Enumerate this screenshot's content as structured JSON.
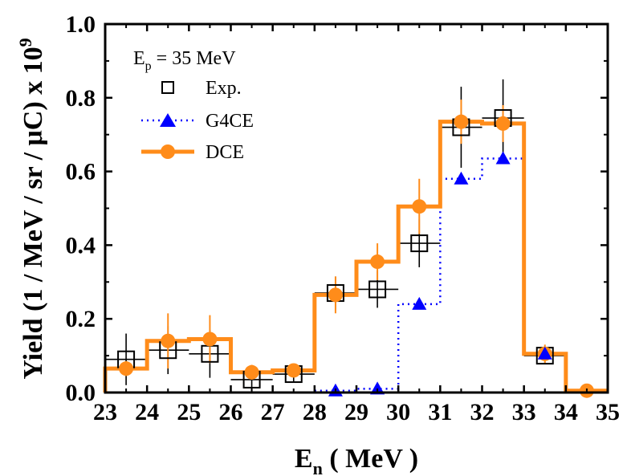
{
  "chart_data": {
    "type": "line",
    "xlabel_main": "E",
    "xlabel_sub": "n",
    "xlabel_rest": " ( MeV )",
    "ylabel_main": "Yield (1 / MeV / sr / μC) x 10",
    "ylabel_sup": "9",
    "xlim": [
      23,
      35
    ],
    "ylim": [
      0,
      1.0
    ],
    "xticks": [
      "23",
      "24",
      "25",
      "26",
      "27",
      "28",
      "29",
      "30",
      "31",
      "32",
      "33",
      "34",
      "35"
    ],
    "yticks": [
      "0.0",
      "0.2",
      "0.4",
      "0.6",
      "0.8",
      "1.0"
    ],
    "annotation_main": "E",
    "annotation_sub": "p",
    "annotation_rest": " = 35 MeV",
    "series": [
      {
        "name": "Exp.",
        "style": "open-square-markers-with-errorbars",
        "color": "#000000",
        "x": [
          23.5,
          24.5,
          25.5,
          26.5,
          27.5,
          28.5,
          29.5,
          30.5,
          31.5,
          32.5,
          33.5
        ],
        "y": [
          0.09,
          0.115,
          0.105,
          0.035,
          0.05,
          0.27,
          0.28,
          0.405,
          0.72,
          0.745,
          0.1
        ],
        "yerr": [
          0.07,
          0.065,
          0.065,
          0.03,
          0.02,
          0.045,
          0.05,
          0.065,
          0.11,
          0.105,
          0.02
        ],
        "xerr": [
          0.5,
          0.5,
          0.5,
          0.5,
          0.5,
          0.5,
          0.5,
          0.5,
          0.5,
          0.5,
          0.5
        ]
      },
      {
        "name": "G4CE",
        "style": "dotted-step-with-triangles",
        "color": "#0000ff",
        "x": [
          28.5,
          29.5,
          30.5,
          31.5,
          32.5,
          33.5
        ],
        "y": [
          0.005,
          0.01,
          0.24,
          0.58,
          0.635,
          0.105
        ]
      },
      {
        "name": "DCE",
        "style": "thick-step-with-circles",
        "color": "#ff8c1a",
        "x": [
          23.5,
          24.5,
          25.5,
          26.5,
          27.5,
          28.5,
          29.5,
          30.5,
          31.5,
          32.5,
          33.5,
          34.5
        ],
        "y": [
          0.065,
          0.14,
          0.145,
          0.055,
          0.06,
          0.265,
          0.355,
          0.505,
          0.735,
          0.73,
          0.105,
          0.005
        ],
        "yerr": [
          0.02,
          0.075,
          0.065,
          0.02,
          0.015,
          0.05,
          0.05,
          0.075,
          0.06,
          0.05,
          0.025,
          0.005
        ]
      }
    ]
  }
}
